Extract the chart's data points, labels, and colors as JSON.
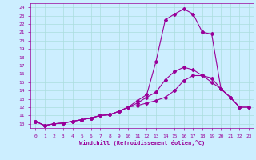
{
  "xlabel": "Windchill (Refroidissement éolien,°C)",
  "bg_color": "#cceeff",
  "grid_color": "#aadddd",
  "line_color": "#990099",
  "xlim": [
    -0.5,
    23.5
  ],
  "ylim": [
    9.5,
    24.5
  ],
  "xticks": [
    0,
    1,
    2,
    3,
    4,
    5,
    6,
    7,
    8,
    9,
    10,
    11,
    12,
    13,
    14,
    15,
    16,
    17,
    18,
    19,
    20,
    21,
    22,
    23
  ],
  "yticks": [
    10,
    11,
    12,
    13,
    14,
    15,
    16,
    17,
    18,
    19,
    20,
    21,
    22,
    23,
    24
  ],
  "curve1_x": [
    0,
    1,
    2,
    3,
    4,
    5,
    6,
    7,
    8,
    9,
    10,
    11,
    12,
    13,
    14,
    15,
    16,
    17,
    18
  ],
  "curve1_y": [
    10.3,
    9.8,
    10.0,
    10.1,
    10.3,
    10.5,
    10.7,
    11.0,
    11.1,
    11.5,
    12.0,
    12.8,
    13.5,
    17.5,
    22.5,
    23.2,
    23.8,
    23.2,
    21.0
  ],
  "curve2_x": [
    0,
    1,
    2,
    3,
    4,
    5,
    6,
    7,
    8,
    9,
    10,
    11,
    12,
    13,
    14,
    15,
    16,
    17,
    18,
    19,
    20,
    21,
    22
  ],
  "curve2_y": [
    10.3,
    9.8,
    10.0,
    10.1,
    10.3,
    10.5,
    10.7,
    11.0,
    11.1,
    11.5,
    12.0,
    12.5,
    13.2,
    13.8,
    15.3,
    16.3,
    16.8,
    16.5,
    15.8,
    15.0,
    14.2,
    13.2,
    12.0
  ],
  "curve3_x": [
    0,
    1,
    2,
    3,
    4,
    5,
    6,
    7,
    8,
    9,
    10,
    11,
    12,
    13,
    14,
    15,
    16
  ],
  "curve3_y": [
    10.3,
    9.8,
    10.0,
    10.1,
    10.3,
    10.5,
    10.7,
    11.0,
    11.1,
    11.5,
    12.0,
    12.2,
    12.5,
    12.8,
    13.2,
    14.0,
    15.2
  ],
  "close1_x": [
    18,
    19,
    20,
    21,
    22,
    23
  ],
  "close1_y": [
    21.0,
    20.8,
    14.2,
    13.2,
    12.0,
    12.0
  ],
  "close2_x": [
    16,
    17,
    18,
    19,
    20,
    21,
    22,
    23
  ],
  "close2_y": [
    15.2,
    15.8,
    15.8,
    15.5,
    14.2,
    13.2,
    12.0,
    12.0
  ]
}
